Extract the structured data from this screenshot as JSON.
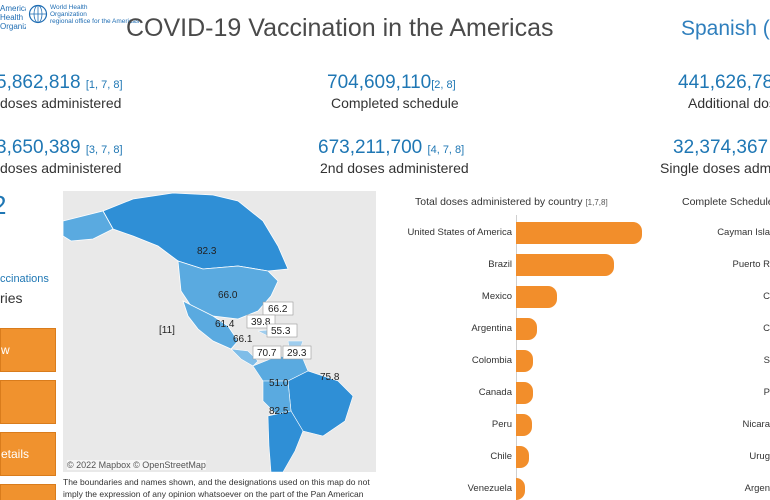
{
  "logo": {
    "paho_text": "American\nHealth\nOrganization",
    "who_text": "World Health\nOrganization\nregional office for the Americas"
  },
  "header": {
    "title": "COVID-19 Vaccination in the Americas",
    "language_link": "Spanish (E"
  },
  "stats": {
    "total_doses": {
      "value": "5,862,818",
      "ref": "[1, 7, 8]",
      "label": "doses administered"
    },
    "completed": {
      "value": "704,609,110",
      "ref": "[2, 8]",
      "label": "Completed schedule"
    },
    "additional": {
      "value": "441,626,78",
      "ref": "",
      "label": "Additional dos"
    },
    "first_doses": {
      "value": "3,650,389",
      "ref": "[3, 7, 8]",
      "label": "doses administered"
    },
    "second_doses": {
      "value": "673,211,700",
      "ref": "[4, 7, 8]",
      "label": "2nd doses administered"
    },
    "single_doses": {
      "value": "32,374,367",
      "ref": "",
      "label": "Single doses admini"
    }
  },
  "sidebar": {
    "big_value": "2",
    "sub1": "ccinations",
    "sub2": "ries",
    "buttons": [
      {
        "label": "w"
      },
      {
        "label": ""
      },
      {
        "label": "etails"
      },
      {
        "label": ""
      }
    ]
  },
  "map": {
    "credit": "© 2022 Mapbox © OpenStreetMap",
    "labels": [
      {
        "text": "82.3"
      },
      {
        "text": "66.0"
      },
      {
        "text": "66.2"
      },
      {
        "text": "39.8"
      },
      {
        "text": "55.3"
      },
      {
        "text": "61.4"
      },
      {
        "text": "66.1"
      },
      {
        "text": "70.7"
      },
      {
        "text": "29.3"
      },
      {
        "text": "75.8"
      },
      {
        "text": "51.0"
      },
      {
        "text": "82.5"
      },
      {
        "text": "[11]"
      }
    ]
  },
  "disclaimer": "The boundaries and names shown, and the designations used on this map do not imply the expression of any opinion whatsoever on the part of the Pan American",
  "chart_titles": {
    "total_by_country": "Total doses administered by country",
    "total_by_country_ref": "[1,7,8]",
    "complete_schedule": "Complete Schedule"
  },
  "chart_data": {
    "type": "bar",
    "title": "Total doses administered by country",
    "categories": [
      "United States of America",
      "Brazil",
      "Mexico",
      "Argentina",
      "Colombia",
      "Canada",
      "Peru",
      "Chile",
      "Venezuela"
    ],
    "values": [
      620,
      480,
      200,
      105,
      85,
      85,
      80,
      62,
      45
    ],
    "xlabel": "",
    "ylabel": ""
  },
  "right_list": {
    "items": [
      "Cayman Isla",
      "Puerto R",
      "C",
      "C",
      "S",
      "P",
      "Nicara",
      "Urug",
      "Argen"
    ]
  },
  "colors": {
    "accent_blue": "#1f77b4",
    "bar_orange": "#f28e2b",
    "button_orange": "#f0922e"
  }
}
